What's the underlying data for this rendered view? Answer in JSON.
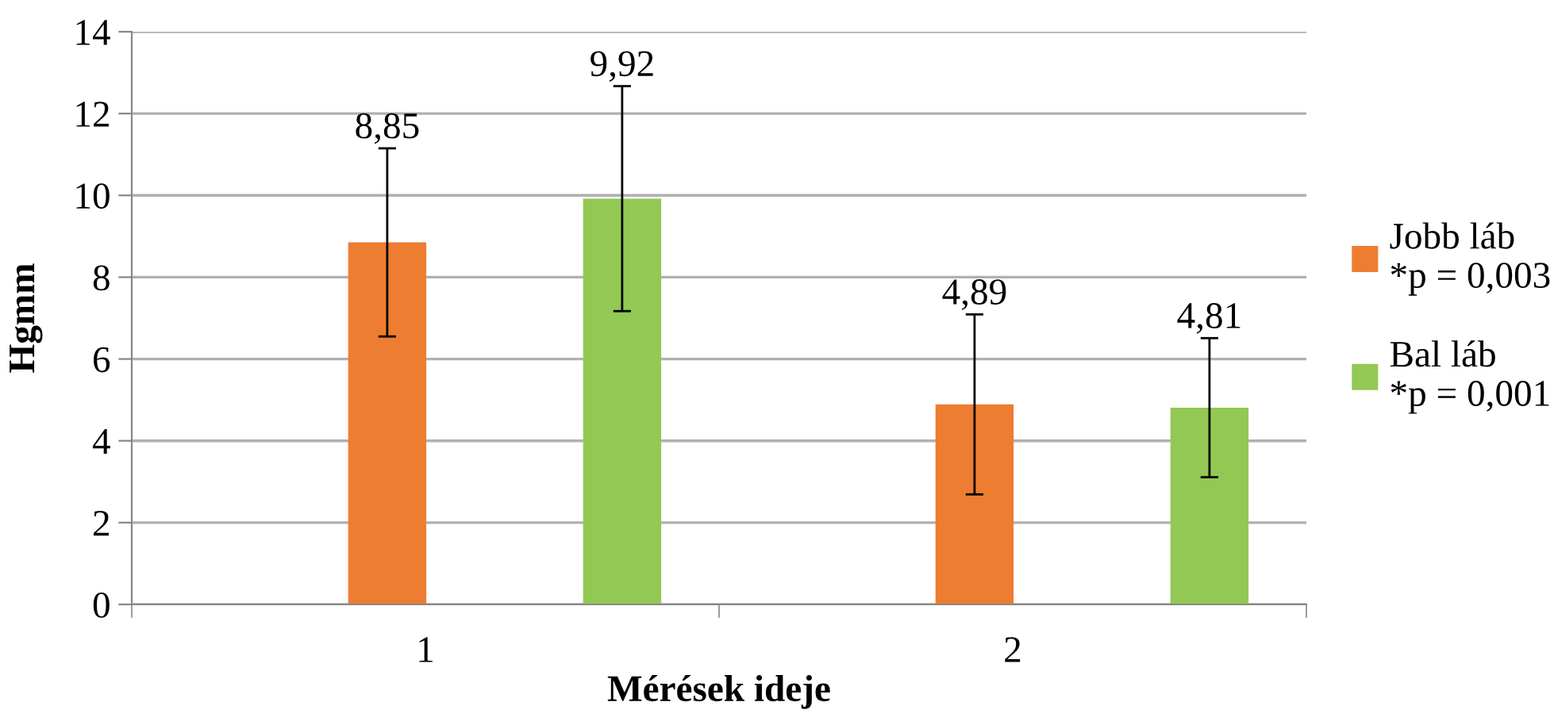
{
  "chart_data": {
    "type": "bar",
    "xlabel": "Mérések ideje",
    "ylabel": "Hgmm",
    "categories": [
      "1",
      "2"
    ],
    "series": [
      {
        "name": "Jobb láb\n*p = 0,003",
        "color": "#ed7d31",
        "values": [
          8.85,
          4.89
        ],
        "errors": [
          2.3,
          2.2
        ],
        "value_labels": [
          "8,85",
          "4,89"
        ]
      },
      {
        "name": "Bal láb\n*p = 0,001",
        "color": "#92c853",
        "values": [
          9.92,
          4.81
        ],
        "errors": [
          2.75,
          1.7
        ],
        "value_labels": [
          "9,92",
          "4,81"
        ]
      }
    ],
    "ylim": [
      0,
      14
    ],
    "yticks": [
      0,
      2,
      4,
      6,
      8,
      10,
      12,
      14
    ],
    "grid": "y",
    "legend": "right"
  }
}
